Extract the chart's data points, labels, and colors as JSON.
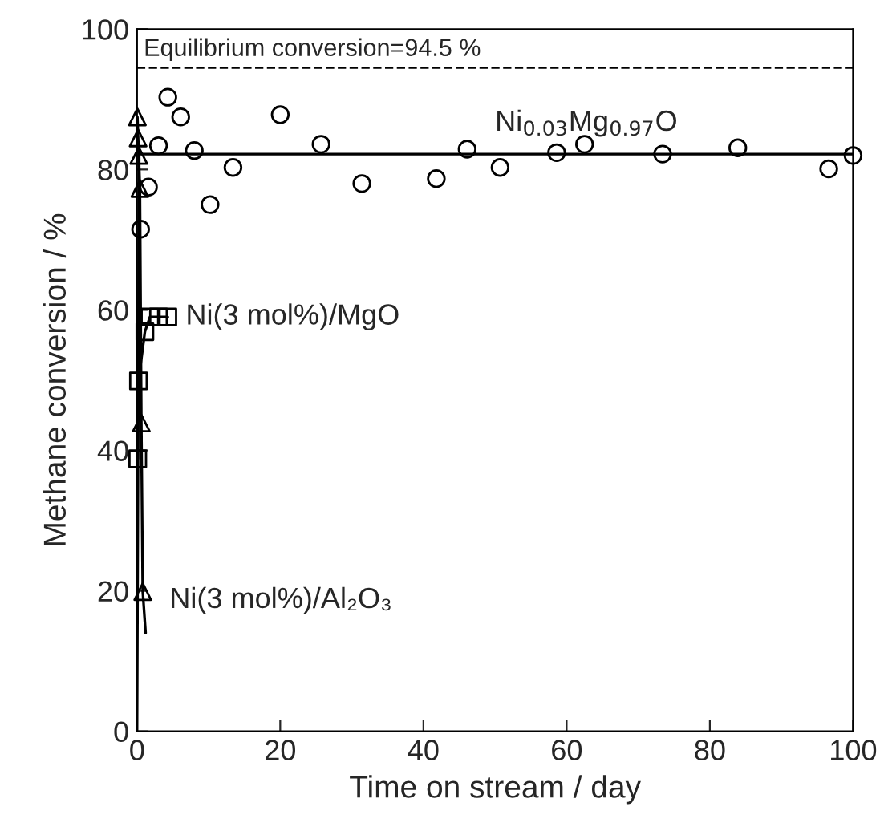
{
  "chart_data": {
    "type": "scatter",
    "xlabel": "Time on stream / day",
    "ylabel": "Methane conversion / %",
    "xlim": [
      0,
      100
    ],
    "ylim": [
      0,
      100
    ],
    "xticks": [
      0,
      20,
      40,
      60,
      80,
      100
    ],
    "yticks": [
      0,
      20,
      40,
      60,
      80,
      100
    ],
    "grid": false,
    "legend": false,
    "series": [
      {
        "name": "Ni$_{0.03}$Mg$_{0.97}$O",
        "marker": "circle",
        "color": "#000000",
        "x": [
          0.5,
          1.6,
          3.0,
          4.3,
          6.1,
          8.0,
          10.2,
          13.4,
          20.0,
          25.7,
          31.4,
          41.8,
          46.1,
          50.7,
          58.6,
          62.5,
          73.4,
          83.9,
          96.6,
          100
        ],
        "values": [
          71.5,
          77.5,
          83.4,
          90.3,
          87.5,
          82.7,
          75.0,
          80.3,
          87.8,
          83.6,
          78.0,
          78.7,
          82.9,
          80.3,
          82.4,
          83.6,
          82.2,
          83.1,
          80.1,
          82.0
        ]
      },
      {
        "name": "Ni(3 mol%)/MgO",
        "marker": "square",
        "color": "#000000",
        "x": [
          0.1,
          0.2,
          1.1,
          1.8,
          3.0,
          4.3
        ],
        "values": [
          38.8,
          49.9,
          56.9,
          59.0,
          59.0,
          59.0
        ]
      },
      {
        "name": "Ni(3 mol%)/Al₂O₃",
        "marker": "triangle",
        "color": "#000000",
        "x": [
          0.05,
          0.15,
          0.25,
          0.4,
          0.6,
          0.8
        ],
        "values": [
          87.5,
          84.5,
          82.0,
          77.3,
          43.9,
          19.9
        ]
      },
      {
        "type": "line",
        "marker": "none",
        "color": "#000000",
        "x": [
          0.0,
          0.3,
          100
        ],
        "values": [
          0,
          82.2,
          82.2
        ]
      },
      {
        "type": "line",
        "marker": "none",
        "color": "#000000",
        "x": [
          0.1,
          0.2,
          1.1,
          1.8,
          4.3
        ],
        "values": [
          38.8,
          49.9,
          56.9,
          59.0,
          59.0
        ]
      },
      {
        "type": "line",
        "marker": "none",
        "color": "#000000",
        "x": [
          0.05,
          0.4,
          0.6,
          0.8,
          1.2
        ],
        "values": [
          87.5,
          77.3,
          43.9,
          19.9,
          14.0
        ]
      }
    ],
    "ref_lines": [
      {
        "axis": "y",
        "value": 94.5,
        "label": "Equilibrium conversion=94.5 %",
        "line_style": "dashed",
        "color": "#000000"
      }
    ]
  }
}
